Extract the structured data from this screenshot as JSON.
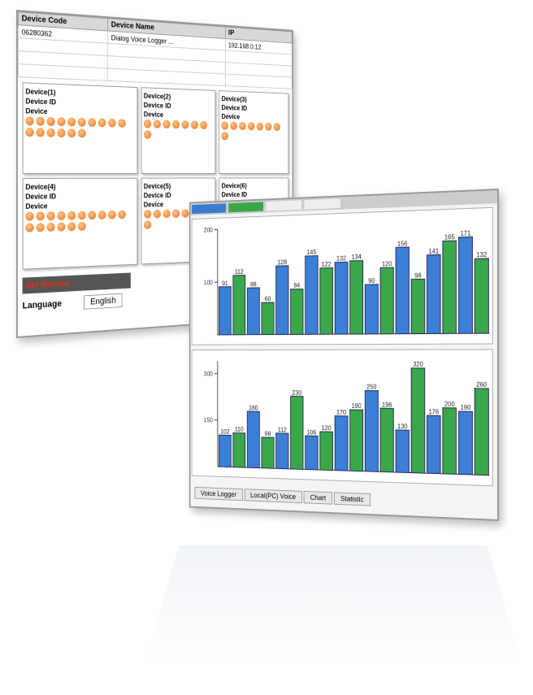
{
  "table": {
    "headers": [
      "Device Code",
      "Device Name",
      "IP"
    ],
    "rows": [
      [
        "06280362",
        "Dialog Voice Logger ...",
        "192.168.0.12"
      ]
    ]
  },
  "devices": [
    {
      "name": "Device(1)",
      "id_label": "Device ID",
      "type_label": "Device"
    },
    {
      "name": "Device(2)",
      "id_label": "Device ID",
      "type_label": "Device"
    },
    {
      "name": "Device(3)",
      "id_label": "Device ID",
      "type_label": "Device"
    },
    {
      "name": "Device(4)",
      "id_label": "Device ID",
      "type_label": "Device"
    },
    {
      "name": "Device(5)",
      "id_label": "Device ID",
      "type_label": "Device"
    },
    {
      "name": "Device(6)",
      "id_label": "Device ID",
      "type_label": "Device"
    }
  ],
  "record_label": "Set Record",
  "language_label": "Language",
  "language_value": "English",
  "tabs": [
    "Voice Logger",
    "Local(PC) Voice",
    "Chart",
    "Statistic"
  ],
  "charts": [
    {
      "type": "bar",
      "ylim": [
        0,
        200
      ],
      "yticks": [
        100,
        200
      ],
      "colors": [
        "#3b7fd6",
        "#3aa84a"
      ],
      "values": [
        91,
        112,
        88,
        60,
        128,
        84,
        145,
        122,
        132,
        134,
        90,
        120,
        156,
        98,
        141,
        165,
        171,
        132
      ]
    },
    {
      "type": "bar",
      "ylim": [
        0,
        340
      ],
      "yticks": [
        150,
        300
      ],
      "colors": [
        "#3b7fd6",
        "#3aa84a"
      ],
      "values": [
        102,
        110,
        180,
        98,
        112,
        230,
        106,
        120,
        170,
        190,
        250,
        196,
        130,
        320,
        176,
        200,
        190,
        260
      ]
    }
  ]
}
